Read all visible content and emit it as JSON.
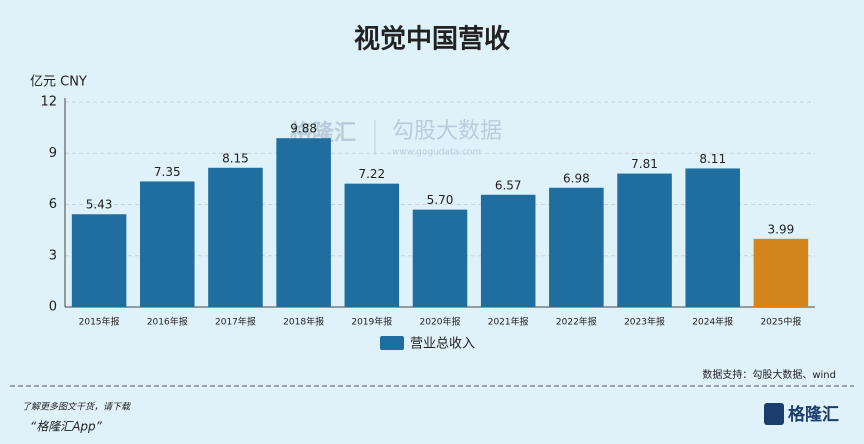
{
  "chart_data": {
    "type": "bar",
    "title": "视觉中国营收",
    "y_label": "亿元  CNY",
    "categories": [
      "2015年报",
      "2016年报",
      "2017年报",
      "2018年报",
      "2019年报",
      "2020年报",
      "2021年报",
      "2022年报",
      "2023年报",
      "2024年报",
      "2025中报"
    ],
    "series": [
      {
        "name": "营业总收入",
        "color": "#1f6e9f",
        "colors": [
          "#1f6e9f",
          "#1f6e9f",
          "#1f6e9f",
          "#1f6e9f",
          "#1f6e9f",
          "#1f6e9f",
          "#1f6e9f",
          "#1f6e9f",
          "#1f6e9f",
          "#1f6e9f",
          "#d4861e"
        ],
        "values": [
          5.43,
          7.35,
          8.15,
          9.88,
          7.22,
          5.7,
          6.57,
          6.98,
          7.81,
          8.11,
          3.99
        ],
        "value_labels": [
          "5.43",
          "7.35",
          "8.15",
          "9.88",
          "7.22",
          "5.70",
          "6.57",
          "6.98",
          "7.81",
          "8.11",
          "3.99"
        ]
      }
    ],
    "ylim": [
      0,
      12
    ],
    "yticks": [
      0,
      3,
      6,
      9,
      12
    ],
    "grid": true,
    "legend": "bottom"
  },
  "watermark": [
    "格隆汇",
    "勾股大数据",
    "www.gogudata.com"
  ],
  "source": "数据支持：勾股大数据、wind",
  "footer": {
    "note": "了解更多图文干货，请下载",
    "app": "“格隆汇App”",
    "logo": "格隆汇"
  }
}
